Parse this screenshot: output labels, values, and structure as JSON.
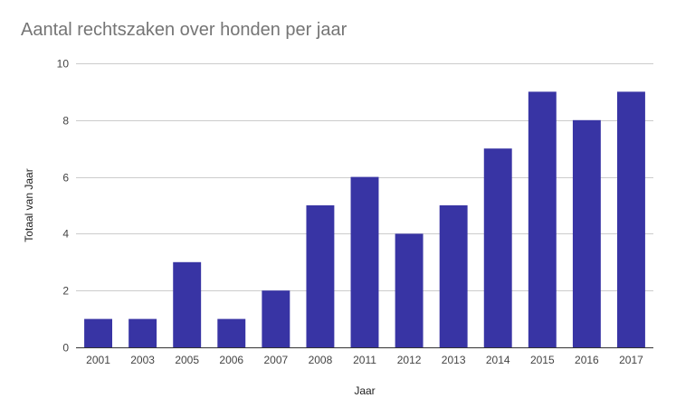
{
  "chart_data": {
    "type": "bar",
    "title": "Aantal rechtszaken over honden per jaar",
    "xlabel": "Jaar",
    "ylabel": "Totaal van Jaar",
    "categories": [
      "2001",
      "2003",
      "2005",
      "2006",
      "2007",
      "2008",
      "2011",
      "2012",
      "2013",
      "2014",
      "2015",
      "2016",
      "2017"
    ],
    "values": [
      1,
      1,
      3,
      1,
      2,
      5,
      6,
      4,
      5,
      7,
      9,
      8,
      9
    ],
    "ylim": [
      0,
      10
    ],
    "yticks": [
      0,
      2,
      4,
      6,
      8,
      10
    ],
    "grid": true,
    "legend": "none",
    "colors": {
      "bar": "#3834a4",
      "grid": "#cccccc",
      "axis": "#333333"
    }
  }
}
